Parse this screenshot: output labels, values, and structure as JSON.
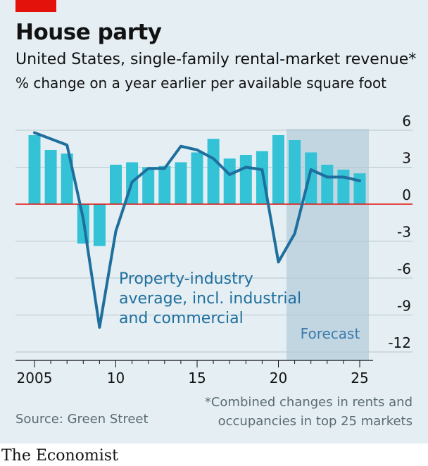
{
  "header": {
    "title": "House party",
    "subtitle": "United States, single-family rental-market revenue*",
    "unit": "% change on a year earlier per available square foot"
  },
  "chart_data": {
    "type": "bar+line",
    "x_ticks": [
      "2005",
      "10",
      "15",
      "20",
      "25"
    ],
    "x_tick_years": [
      2005,
      2010,
      2015,
      2020,
      2025
    ],
    "y_ticks": [
      "6",
      "3",
      "0",
      "-3",
      "-6",
      "-9",
      "-12"
    ],
    "y_tick_values": [
      6,
      3,
      0,
      -3,
      -6,
      -9,
      -12
    ],
    "ylim": [
      -12,
      6
    ],
    "forecast_start": 2021,
    "forecast_label": "Forecast",
    "bars": {
      "name": "Single-family rental-market revenue",
      "x": [
        2005,
        2006,
        2007,
        2008,
        2009,
        2010,
        2011,
        2012,
        2013,
        2014,
        2015,
        2016,
        2017,
        2018,
        2019,
        2020,
        2021,
        2022,
        2023,
        2024,
        2025
      ],
      "values": [
        5.6,
        4.4,
        4.1,
        -3.2,
        -3.4,
        3.2,
        3.4,
        3.0,
        3.1,
        3.4,
        4.2,
        5.3,
        3.7,
        4.0,
        4.3,
        5.6,
        5.2,
        4.2,
        3.2,
        2.8,
        2.5
      ]
    },
    "line": {
      "name": "Property-industry average, incl. industrial and commercial",
      "label_line1": "Property-industry",
      "label_line2a": "average,",
      "label_line2b": " incl. industrial",
      "label_line3": "and commercial",
      "x": [
        2005,
        2006,
        2007,
        2008,
        2009,
        2010,
        2011,
        2012,
        2013,
        2014,
        2015,
        2016,
        2017,
        2018,
        2019,
        2020,
        2021,
        2022,
        2023,
        2024,
        2025
      ],
      "values": [
        5.8,
        5.3,
        4.8,
        -1.2,
        -10.0,
        -2.2,
        1.8,
        2.9,
        2.9,
        4.7,
        4.4,
        3.7,
        2.4,
        3.0,
        2.8,
        -4.7,
        -2.4,
        2.8,
        2.2,
        2.2,
        1.9
      ]
    },
    "colors": {
      "bars": "#33c2d6",
      "line": "#1f6f9e",
      "zero": "#e3120b",
      "forecast": "#c2d6e2",
      "grid": "#b7c6cd"
    }
  },
  "footer": {
    "source": "Source: Green Street",
    "note_line1": "*Combined changes in rents and",
    "note_line2": "occupancies in top 25 markets",
    "brand": "The Economist"
  }
}
